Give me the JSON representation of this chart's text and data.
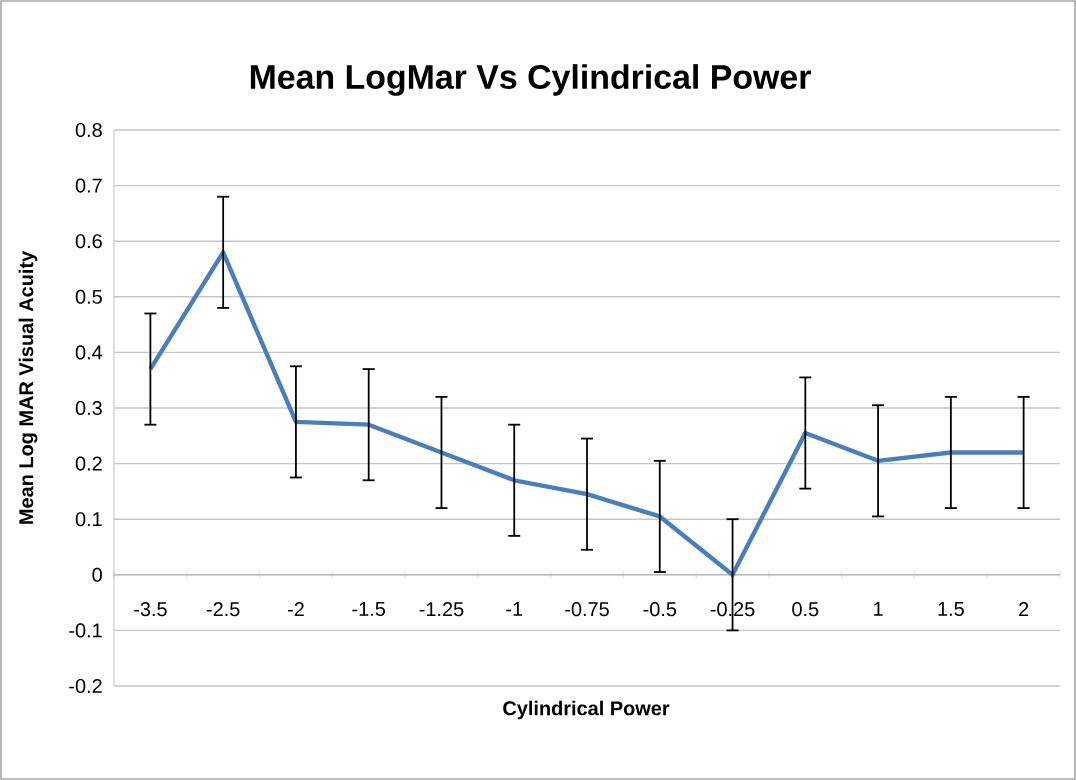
{
  "chart_data": {
    "type": "line",
    "title": "Mean LogMar Vs Cylindrical Power",
    "xlabel": "Cylindrical Power",
    "ylabel": "Mean Log MAR Visual Acuity",
    "categories": [
      "-3.5",
      "-2.5",
      "-2",
      "-1.5",
      "-1.25",
      "-1",
      "-0.75",
      "-0.5",
      "-0.25",
      "0.5",
      "1",
      "1.5",
      "2"
    ],
    "series": [
      {
        "color": "#4a7ebb",
        "values": [
          0.37,
          0.58,
          0.275,
          0.27,
          0.22,
          0.17,
          0.145,
          0.105,
          0.0,
          0.255,
          0.205,
          0.22,
          0.22
        ],
        "errors": [
          0.1,
          0.1,
          0.1,
          0.1,
          0.1,
          0.1,
          0.1,
          0.1,
          0.1,
          0.1,
          0.1,
          0.1,
          0.1
        ]
      }
    ],
    "ylim": [
      -0.2,
      0.8
    ],
    "yticks": [
      -0.2,
      -0.1,
      0,
      0.1,
      0.2,
      0.3,
      0.4,
      0.5,
      0.6,
      0.7,
      0.8
    ],
    "grid": "y",
    "marker": "none",
    "line_style": "solid"
  }
}
